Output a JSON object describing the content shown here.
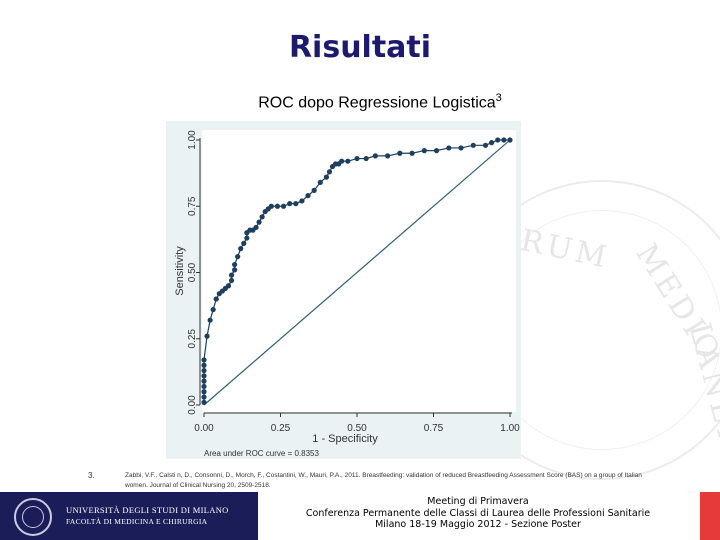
{
  "slide": {
    "title": "Risultati",
    "subtitle": "ROC dopo Regressione Logistica",
    "subtitle_sup": "3",
    "reference_number": "3.",
    "reference_text": "Zabbi, V.F., Calsti n, D., Consonni, D., Morch, F., Costantini, W., Mauri, P.A., 2011. Breastfeeding: validation of reduced Breastfeeding Assessment Score (BAS) on a group of Italian women. Journal of Clinical Nursing 20, 2509-2518.",
    "seal_text": "RUM MEDIOLANEN"
  },
  "footer": {
    "university": "UNIVERSITÀ DEGLI STUDI DI MILANO",
    "faculty": "FACOLTÀ DI MEDICINA E CHIRURGIA",
    "line1": "Meeting di Primavera",
    "line2": "Conferenza Permanente delle Classi di Laurea delle Professioni Sanitarie",
    "line3": "Milano 18-19 Maggio 2012 - Sezione Poster"
  },
  "colors": {
    "title": "#1c1a6e",
    "curve": "#1f3f5f",
    "reference_line": "#2f5f73",
    "frame_bg": "#eaf2f3",
    "footer_bg": "#1b1d58",
    "footer_accent": "#e63a3a"
  },
  "chart_data": {
    "type": "line",
    "xlabel": "1 - Specificity",
    "ylabel": "Sensitivity",
    "xlim": [
      0,
      1
    ],
    "ylim": [
      0,
      1
    ],
    "xticks": [
      "0.00",
      "0.25",
      "0.50",
      "0.75",
      "1.00"
    ],
    "yticks": [
      "0.00",
      "0.25",
      "0.50",
      "0.75",
      "1.00"
    ],
    "note": "Area under ROC curve = 0.8353",
    "grid": false,
    "series": [
      {
        "x": [
          0,
          0,
          0,
          0,
          0,
          0,
          0,
          0,
          0,
          0.01,
          0.02,
          0.03,
          0.04,
          0.05,
          0.06,
          0.07,
          0.08,
          0.09,
          0.09,
          0.1,
          0.1,
          0.11,
          0.12,
          0.13,
          0.14,
          0.14,
          0.15,
          0.16,
          0.17,
          0.18,
          0.19,
          0.2,
          0.21,
          0.22,
          0.24,
          0.26,
          0.28,
          0.3,
          0.32,
          0.34,
          0.36,
          0.38,
          0.4,
          0.41,
          0.42,
          0.43,
          0.44,
          0.45,
          0.47,
          0.5,
          0.53,
          0.56,
          0.6,
          0.64,
          0.68,
          0.72,
          0.76,
          0.8,
          0.84,
          0.88,
          0.92,
          0.94,
          0.96,
          0.98,
          1.0
        ],
        "y": [
          0.01,
          0.03,
          0.05,
          0.07,
          0.09,
          0.11,
          0.13,
          0.15,
          0.17,
          0.26,
          0.32,
          0.36,
          0.4,
          0.42,
          0.43,
          0.44,
          0.45,
          0.47,
          0.49,
          0.51,
          0.53,
          0.56,
          0.59,
          0.61,
          0.63,
          0.65,
          0.66,
          0.66,
          0.67,
          0.69,
          0.71,
          0.73,
          0.74,
          0.75,
          0.75,
          0.75,
          0.76,
          0.76,
          0.77,
          0.79,
          0.81,
          0.84,
          0.86,
          0.88,
          0.9,
          0.91,
          0.91,
          0.92,
          0.92,
          0.93,
          0.93,
          0.94,
          0.94,
          0.95,
          0.95,
          0.96,
          0.96,
          0.97,
          0.97,
          0.98,
          0.98,
          0.99,
          1.0,
          1.0,
          1.0
        ]
      }
    ]
  }
}
